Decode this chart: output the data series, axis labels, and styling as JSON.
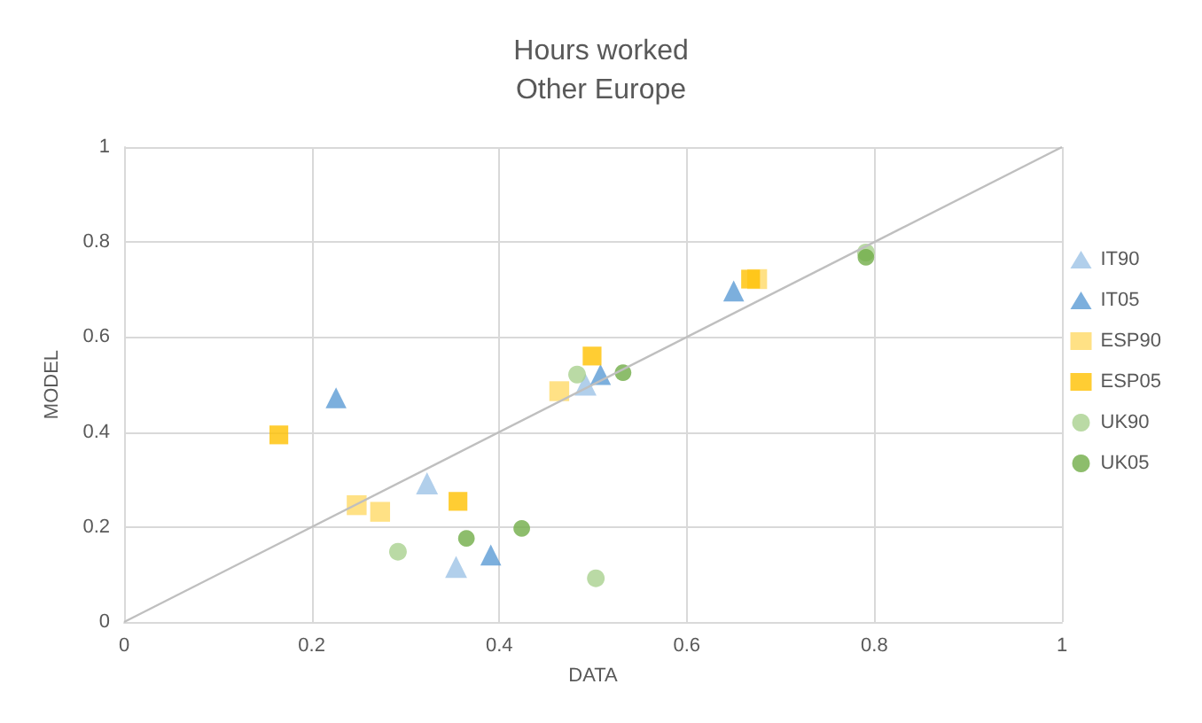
{
  "chart_data": {
    "type": "scatter",
    "title": "Hours worked",
    "subtitle": "Other Europe",
    "xlabel": "DATA",
    "ylabel": "MODEL",
    "xlim": [
      0,
      1
    ],
    "ylim": [
      0,
      1
    ],
    "xticks": [
      0,
      0.2,
      0.4,
      0.6,
      0.8,
      1
    ],
    "yticks": [
      0,
      0.2,
      0.4,
      0.6,
      0.8,
      1
    ],
    "grid": true,
    "legend": "right",
    "series": [
      {
        "type": "line",
        "x": [
          0,
          1
        ],
        "values": [
          0,
          1
        ],
        "color": "#bfbfbf",
        "marker": "none"
      },
      {
        "name": "IT90",
        "color": "#9dc3e6",
        "marker": "triangle",
        "x": [
          0.323,
          0.354,
          0.492
        ],
        "values": [
          0.292,
          0.116,
          0.5
        ]
      },
      {
        "name": "IT05",
        "color": "#5b9bd5",
        "marker": "triangle",
        "x": [
          0.226,
          0.391,
          0.508,
          0.65
        ],
        "values": [
          0.472,
          0.141,
          0.521,
          0.697
        ]
      },
      {
        "name": "ESP90",
        "color": "#ffd966",
        "marker": "square",
        "x": [
          0.248,
          0.273,
          0.464,
          0.675
        ],
        "values": [
          0.246,
          0.232,
          0.486,
          0.722
        ]
      },
      {
        "name": "ESP05",
        "color": "#ffc000",
        "marker": "square",
        "x": [
          0.165,
          0.356,
          0.499,
          0.668
        ],
        "values": [
          0.394,
          0.254,
          0.56,
          0.722
        ]
      },
      {
        "name": "UK90",
        "color": "#a9d18e",
        "marker": "circle",
        "x": [
          0.292,
          0.483,
          0.503,
          0.791
        ],
        "values": [
          0.148,
          0.521,
          0.092,
          0.778
        ]
      },
      {
        "name": "UK05",
        "color": "#70ad47",
        "marker": "circle",
        "x": [
          0.365,
          0.424,
          0.532,
          0.791
        ],
        "values": [
          0.176,
          0.197,
          0.525,
          0.768
        ]
      }
    ]
  }
}
